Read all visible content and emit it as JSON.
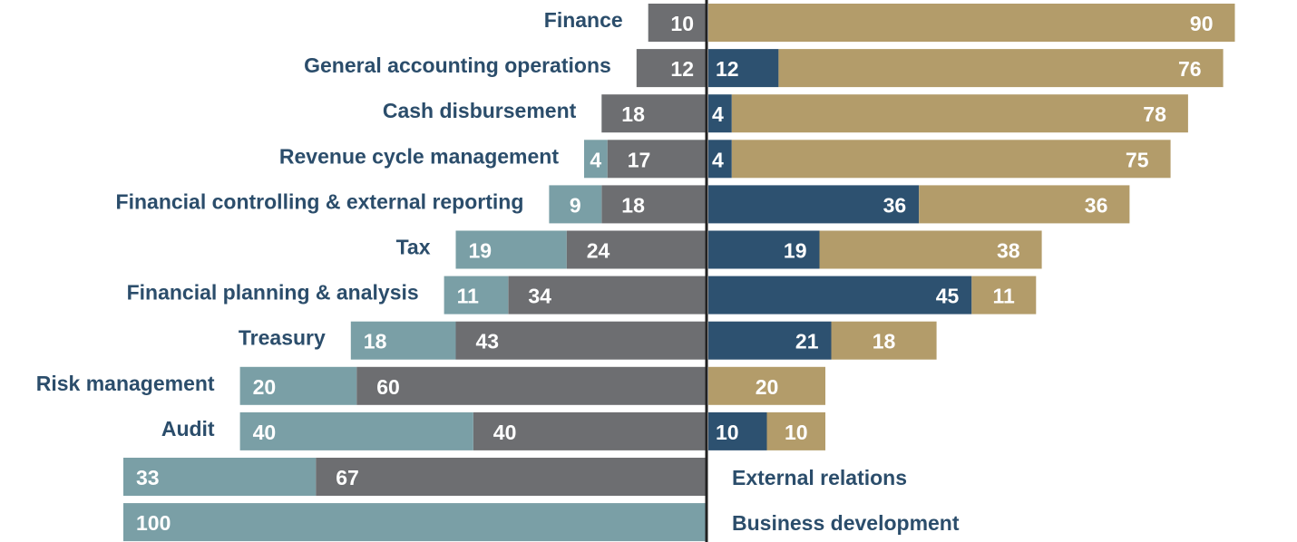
{
  "chart_data": {
    "type": "bar",
    "orientation": "horizontal-diverging",
    "categories": [
      "Finance",
      "General accounting operations",
      "Cash disbursement",
      "Revenue cycle management",
      "Financial controlling & external reporting",
      "Tax",
      "Financial planning & analysis",
      "Treasury",
      "Risk management",
      "Audit",
      "External relations",
      "Business development"
    ],
    "series": [
      {
        "side": "left-outer",
        "color": "#7a9fa6",
        "values": [
          0,
          0,
          0,
          4,
          9,
          19,
          11,
          18,
          20,
          40,
          33,
          100
        ]
      },
      {
        "side": "left-inner",
        "color": "#6d6e71",
        "values": [
          10,
          12,
          18,
          17,
          18,
          24,
          34,
          43,
          60,
          40,
          67,
          0
        ]
      },
      {
        "side": "right-inner",
        "color": "#2d5170",
        "values": [
          0,
          12,
          4,
          4,
          36,
          19,
          45,
          21,
          0,
          10,
          0,
          0
        ]
      },
      {
        "side": "right-outer",
        "color": "#b39c6a",
        "values": [
          90,
          76,
          78,
          75,
          36,
          38,
          11,
          18,
          20,
          10,
          0,
          0
        ]
      }
    ]
  }
}
